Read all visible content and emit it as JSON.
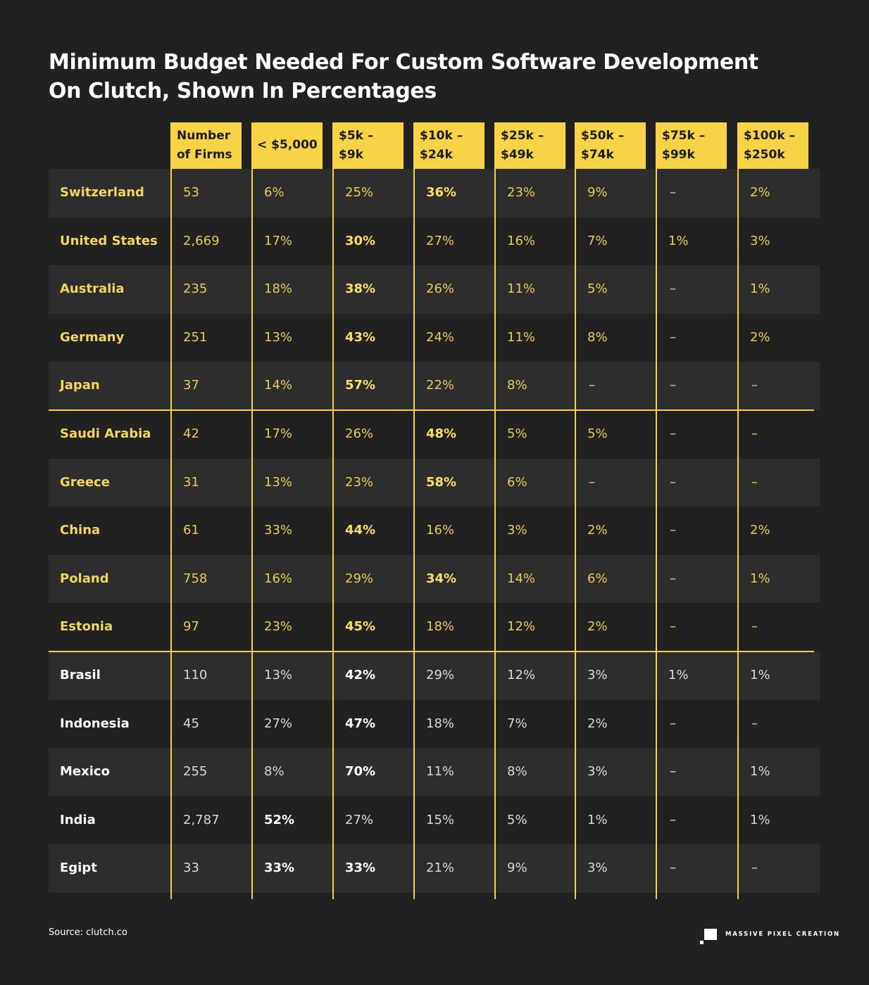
{
  "chart_data": {
    "type": "table",
    "title_lines": [
      "Minimum Budget Needed For Custom Software Development",
      "On Clutch, Shown In Percentages"
    ],
    "columns": [
      "Number\nof Firms",
      "< $5,000",
      "$5k –\n$9k",
      "$10k –\n$24k",
      "$25k –\n$49k",
      "$50k –\n$74k",
      "$75k –\n$99k",
      "$100k –\n$250k"
    ],
    "rows": [
      {
        "country": "Switzerland",
        "group": 1,
        "values": [
          "53",
          "6%",
          "25%",
          "36%",
          "23%",
          "9%",
          "–",
          "2%"
        ],
        "highlight": 3
      },
      {
        "country": "United States",
        "group": 1,
        "values": [
          "2,669",
          "17%",
          "30%",
          "27%",
          "16%",
          "7%",
          "1%",
          "3%"
        ],
        "highlight": 2
      },
      {
        "country": "Australia",
        "group": 1,
        "values": [
          "235",
          "18%",
          "38%",
          "26%",
          "11%",
          "5%",
          "–",
          "1%"
        ],
        "highlight": 2
      },
      {
        "country": "Germany",
        "group": 1,
        "values": [
          "251",
          "13%",
          "43%",
          "24%",
          "11%",
          "8%",
          "–",
          "2%"
        ],
        "highlight": 2
      },
      {
        "country": "Japan",
        "group": 1,
        "values": [
          "37",
          "14%",
          "57%",
          "22%",
          "8%",
          "–",
          "–",
          "–"
        ],
        "highlight": 2
      },
      {
        "country": "Saudi Arabia",
        "group": 2,
        "values": [
          "42",
          "17%",
          "26%",
          "48%",
          "5%",
          "5%",
          "–",
          "–"
        ],
        "highlight": 3
      },
      {
        "country": "Greece",
        "group": 2,
        "values": [
          "31",
          "13%",
          "23%",
          "58%",
          "6%",
          "–",
          "–",
          "–"
        ],
        "highlight": 3
      },
      {
        "country": "China",
        "group": 2,
        "values": [
          "61",
          "33%",
          "44%",
          "16%",
          "3%",
          "2%",
          "–",
          "2%"
        ],
        "highlight": 2
      },
      {
        "country": "Poland",
        "group": 2,
        "values": [
          "758",
          "16%",
          "29%",
          "34%",
          "14%",
          "6%",
          "–",
          "1%"
        ],
        "highlight": 3
      },
      {
        "country": "Estonia",
        "group": 2,
        "values": [
          "97",
          "23%",
          "45%",
          "18%",
          "12%",
          "2%",
          "–",
          "–"
        ],
        "highlight": 2
      },
      {
        "country": "Brasil",
        "group": 3,
        "values": [
          "110",
          "13%",
          "42%",
          "29%",
          "12%",
          "3%",
          "1%",
          "1%"
        ],
        "highlight": 2
      },
      {
        "country": "Indonesia",
        "group": 3,
        "values": [
          "45",
          "27%",
          "47%",
          "18%",
          "7%",
          "2%",
          "–",
          "–"
        ],
        "highlight": 2
      },
      {
        "country": "Mexico",
        "group": 3,
        "values": [
          "255",
          "8%",
          "70%",
          "11%",
          "8%",
          "3%",
          "–",
          "1%"
        ],
        "highlight": 2
      },
      {
        "country": "India",
        "group": 3,
        "values": [
          "2,787",
          "52%",
          "27%",
          "15%",
          "5%",
          "1%",
          "–",
          "1%"
        ],
        "highlight": 1
      },
      {
        "country": "Egipt",
        "group": 3,
        "values": [
          "33",
          "33%",
          "33%",
          "21%",
          "9%",
          "3%",
          "–",
          "–"
        ],
        "highlight": [
          1,
          2
        ]
      }
    ],
    "colors": {
      "background": "#212121",
      "row_alt": "#2d2d2d",
      "accent_yellow": "#f7d346",
      "text_yellow": "#f4d65f",
      "text_white": "#ffffff"
    }
  },
  "footer": {
    "source": "Source: clutch.co",
    "brand": "MASSIVE PIXEL CREATION",
    "brand_icon": "square-pixel-logo-icon"
  }
}
